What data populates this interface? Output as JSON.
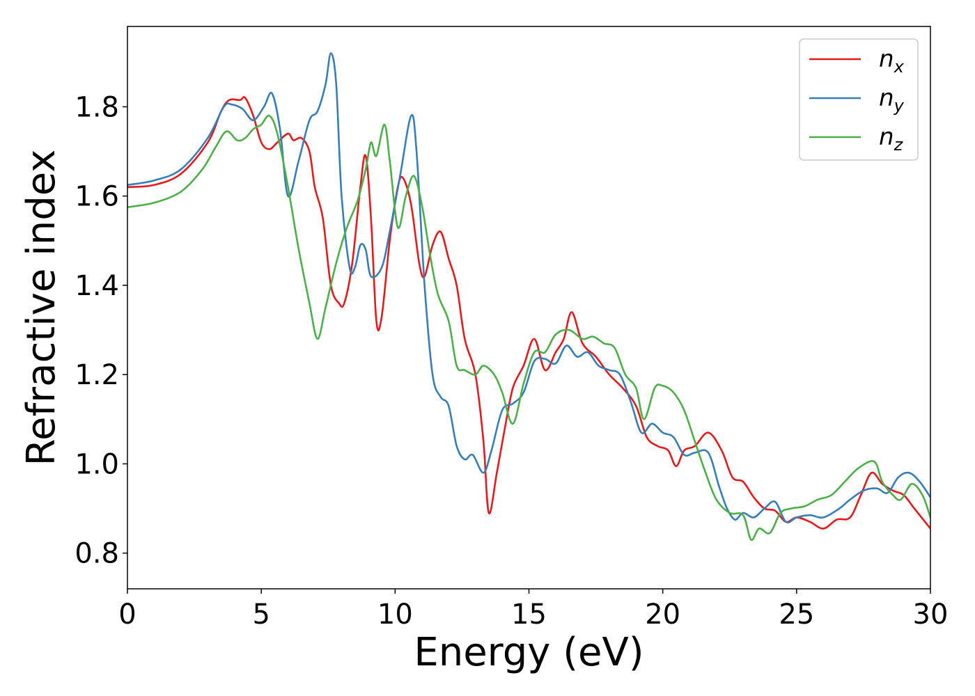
{
  "chart_data": {
    "type": "line",
    "xlabel": "Energy (eV)",
    "ylabel": "Refractive index",
    "xlim": [
      0,
      30
    ],
    "ylim": [
      0.72,
      1.98
    ],
    "xticks": [
      0,
      5,
      10,
      15,
      20,
      25,
      30
    ],
    "xtick_labels": [
      "0",
      "5",
      "10",
      "15",
      "20",
      "25",
      "30"
    ],
    "yticks": [
      0.8,
      1.0,
      1.2,
      1.4,
      1.6,
      1.8
    ],
    "ytick_labels": [
      "0.8",
      "1.0",
      "1.2",
      "1.4",
      "1.6",
      "1.8"
    ],
    "grid": false,
    "legend_position": "top-right",
    "series": [
      {
        "name": "n",
        "subscript": "x",
        "color": "#e41a1c",
        "points": [
          [
            0,
            1.62
          ],
          [
            1,
            1.625
          ],
          [
            2,
            1.65
          ],
          [
            3,
            1.72
          ],
          [
            3.5,
            1.79
          ],
          [
            3.8,
            1.815
          ],
          [
            4.2,
            1.815
          ],
          [
            4.4,
            1.82
          ],
          [
            4.7,
            1.78
          ],
          [
            5,
            1.72
          ],
          [
            5.3,
            1.705
          ],
          [
            5.6,
            1.72
          ],
          [
            6,
            1.74
          ],
          [
            6.2,
            1.725
          ],
          [
            6.5,
            1.73
          ],
          [
            6.8,
            1.7
          ],
          [
            7,
            1.62
          ],
          [
            7.3,
            1.55
          ],
          [
            7.6,
            1.4
          ],
          [
            7.9,
            1.36
          ],
          [
            8.1,
            1.36
          ],
          [
            8.4,
            1.45
          ],
          [
            8.7,
            1.62
          ],
          [
            8.9,
            1.69
          ],
          [
            9.1,
            1.55
          ],
          [
            9.3,
            1.32
          ],
          [
            9.5,
            1.33
          ],
          [
            9.8,
            1.5
          ],
          [
            10.1,
            1.62
          ],
          [
            10.3,
            1.64
          ],
          [
            10.6,
            1.58
          ],
          [
            10.9,
            1.45
          ],
          [
            11.1,
            1.42
          ],
          [
            11.4,
            1.49
          ],
          [
            11.7,
            1.52
          ],
          [
            12,
            1.46
          ],
          [
            12.3,
            1.4
          ],
          [
            12.6,
            1.28
          ],
          [
            13,
            1.2
          ],
          [
            13.3,
            1.05
          ],
          [
            13.5,
            0.89
          ],
          [
            13.8,
            0.98
          ],
          [
            14.1,
            1.08
          ],
          [
            14.4,
            1.17
          ],
          [
            14.8,
            1.22
          ],
          [
            15.2,
            1.28
          ],
          [
            15.6,
            1.21
          ],
          [
            16,
            1.25
          ],
          [
            16.3,
            1.28
          ],
          [
            16.6,
            1.34
          ],
          [
            17,
            1.27
          ],
          [
            17.5,
            1.24
          ],
          [
            18,
            1.2
          ],
          [
            18.5,
            1.17
          ],
          [
            19,
            1.13
          ],
          [
            19.4,
            1.06
          ],
          [
            19.8,
            1.04
          ],
          [
            20.2,
            1.03
          ],
          [
            20.5,
            0.995
          ],
          [
            20.8,
            1.03
          ],
          [
            21.2,
            1.04
          ],
          [
            21.7,
            1.07
          ],
          [
            22.2,
            1.03
          ],
          [
            22.6,
            0.97
          ],
          [
            23,
            0.96
          ],
          [
            23.4,
            0.925
          ],
          [
            23.8,
            0.9
          ],
          [
            24.2,
            0.895
          ],
          [
            24.6,
            0.87
          ],
          [
            25,
            0.88
          ],
          [
            25.5,
            0.87
          ],
          [
            26,
            0.855
          ],
          [
            26.5,
            0.875
          ],
          [
            27,
            0.88
          ],
          [
            27.4,
            0.93
          ],
          [
            27.8,
            0.98
          ],
          [
            28.2,
            0.955
          ],
          [
            28.6,
            0.94
          ],
          [
            29,
            0.93
          ],
          [
            29.4,
            0.9
          ],
          [
            30,
            0.855
          ]
        ]
      },
      {
        "name": "n",
        "subscript": "y",
        "color": "#377eb8",
        "points": [
          [
            0,
            1.625
          ],
          [
            1,
            1.635
          ],
          [
            2,
            1.66
          ],
          [
            3,
            1.73
          ],
          [
            3.6,
            1.8
          ],
          [
            3.9,
            1.805
          ],
          [
            4.3,
            1.795
          ],
          [
            4.7,
            1.77
          ],
          [
            5.1,
            1.8
          ],
          [
            5.4,
            1.83
          ],
          [
            5.7,
            1.75
          ],
          [
            6,
            1.6
          ],
          [
            6.4,
            1.68
          ],
          [
            6.8,
            1.77
          ],
          [
            7.1,
            1.79
          ],
          [
            7.4,
            1.85
          ],
          [
            7.6,
            1.92
          ],
          [
            7.8,
            1.85
          ],
          [
            8,
            1.6
          ],
          [
            8.3,
            1.44
          ],
          [
            8.5,
            1.44
          ],
          [
            8.7,
            1.49
          ],
          [
            8.9,
            1.48
          ],
          [
            9.1,
            1.42
          ],
          [
            9.5,
            1.44
          ],
          [
            9.8,
            1.52
          ],
          [
            10.2,
            1.65
          ],
          [
            10.6,
            1.78
          ],
          [
            10.8,
            1.7
          ],
          [
            11.1,
            1.4
          ],
          [
            11.4,
            1.2
          ],
          [
            11.7,
            1.15
          ],
          [
            12,
            1.13
          ],
          [
            12.3,
            1.04
          ],
          [
            12.6,
            1.01
          ],
          [
            12.9,
            1.02
          ],
          [
            13.3,
            0.98
          ],
          [
            13.6,
            1.03
          ],
          [
            14,
            1.12
          ],
          [
            14.4,
            1.135
          ],
          [
            14.8,
            1.16
          ],
          [
            15.2,
            1.23
          ],
          [
            15.6,
            1.235
          ],
          [
            16,
            1.225
          ],
          [
            16.4,
            1.265
          ],
          [
            16.8,
            1.24
          ],
          [
            17.2,
            1.25
          ],
          [
            17.6,
            1.22
          ],
          [
            18,
            1.21
          ],
          [
            18.4,
            1.2
          ],
          [
            18.8,
            1.14
          ],
          [
            19.2,
            1.07
          ],
          [
            19.6,
            1.09
          ],
          [
            20,
            1.07
          ],
          [
            20.4,
            1.06
          ],
          [
            20.8,
            1.02
          ],
          [
            21.2,
            1.025
          ],
          [
            21.7,
            1.025
          ],
          [
            22.1,
            0.95
          ],
          [
            22.4,
            0.9
          ],
          [
            22.7,
            0.875
          ],
          [
            23,
            0.89
          ],
          [
            23.4,
            0.88
          ],
          [
            23.8,
            0.9
          ],
          [
            24.2,
            0.915
          ],
          [
            24.6,
            0.87
          ],
          [
            25,
            0.88
          ],
          [
            25.5,
            0.885
          ],
          [
            26,
            0.88
          ],
          [
            26.6,
            0.9
          ],
          [
            27,
            0.92
          ],
          [
            27.5,
            0.94
          ],
          [
            28,
            0.945
          ],
          [
            28.4,
            0.935
          ],
          [
            28.8,
            0.97
          ],
          [
            29.2,
            0.98
          ],
          [
            29.6,
            0.96
          ],
          [
            30,
            0.925
          ]
        ]
      },
      {
        "name": "n",
        "subscript": "z",
        "color": "#4daf4a",
        "points": [
          [
            0,
            1.575
          ],
          [
            1,
            1.585
          ],
          [
            2,
            1.61
          ],
          [
            2.8,
            1.66
          ],
          [
            3.3,
            1.71
          ],
          [
            3.7,
            1.745
          ],
          [
            4.1,
            1.725
          ],
          [
            4.4,
            1.73
          ],
          [
            4.7,
            1.75
          ],
          [
            5,
            1.76
          ],
          [
            5.3,
            1.78
          ],
          [
            5.6,
            1.74
          ],
          [
            6,
            1.62
          ],
          [
            6.4,
            1.48
          ],
          [
            6.8,
            1.36
          ],
          [
            7.1,
            1.28
          ],
          [
            7.4,
            1.35
          ],
          [
            7.8,
            1.45
          ],
          [
            8.2,
            1.53
          ],
          [
            8.6,
            1.59
          ],
          [
            8.9,
            1.66
          ],
          [
            9.1,
            1.72
          ],
          [
            9.3,
            1.69
          ],
          [
            9.6,
            1.76
          ],
          [
            9.8,
            1.68
          ],
          [
            10.1,
            1.53
          ],
          [
            10.4,
            1.6
          ],
          [
            10.7,
            1.645
          ],
          [
            11,
            1.58
          ],
          [
            11.3,
            1.47
          ],
          [
            11.6,
            1.38
          ],
          [
            12,
            1.32
          ],
          [
            12.3,
            1.22
          ],
          [
            12.6,
            1.21
          ],
          [
            13,
            1.2
          ],
          [
            13.3,
            1.22
          ],
          [
            13.7,
            1.2
          ],
          [
            14,
            1.16
          ],
          [
            14.4,
            1.09
          ],
          [
            14.8,
            1.18
          ],
          [
            15.2,
            1.25
          ],
          [
            15.6,
            1.25
          ],
          [
            16,
            1.29
          ],
          [
            16.5,
            1.3
          ],
          [
            17,
            1.28
          ],
          [
            17.4,
            1.285
          ],
          [
            17.8,
            1.27
          ],
          [
            18.2,
            1.26
          ],
          [
            18.6,
            1.2
          ],
          [
            19,
            1.17
          ],
          [
            19.3,
            1.1
          ],
          [
            19.7,
            1.17
          ],
          [
            20,
            1.175
          ],
          [
            20.4,
            1.16
          ],
          [
            20.8,
            1.12
          ],
          [
            21.2,
            1.05
          ],
          [
            21.6,
            0.98
          ],
          [
            22,
            0.92
          ],
          [
            22.5,
            0.89
          ],
          [
            23,
            0.885
          ],
          [
            23.3,
            0.83
          ],
          [
            23.6,
            0.855
          ],
          [
            24,
            0.845
          ],
          [
            24.4,
            0.89
          ],
          [
            24.8,
            0.9
          ],
          [
            25.3,
            0.905
          ],
          [
            25.8,
            0.92
          ],
          [
            26.3,
            0.93
          ],
          [
            26.8,
            0.96
          ],
          [
            27.3,
            0.99
          ],
          [
            27.9,
            1.005
          ],
          [
            28.2,
            0.96
          ],
          [
            28.6,
            0.93
          ],
          [
            28.9,
            0.92
          ],
          [
            29.3,
            0.955
          ],
          [
            29.7,
            0.93
          ],
          [
            30,
            0.88
          ]
        ]
      }
    ]
  }
}
